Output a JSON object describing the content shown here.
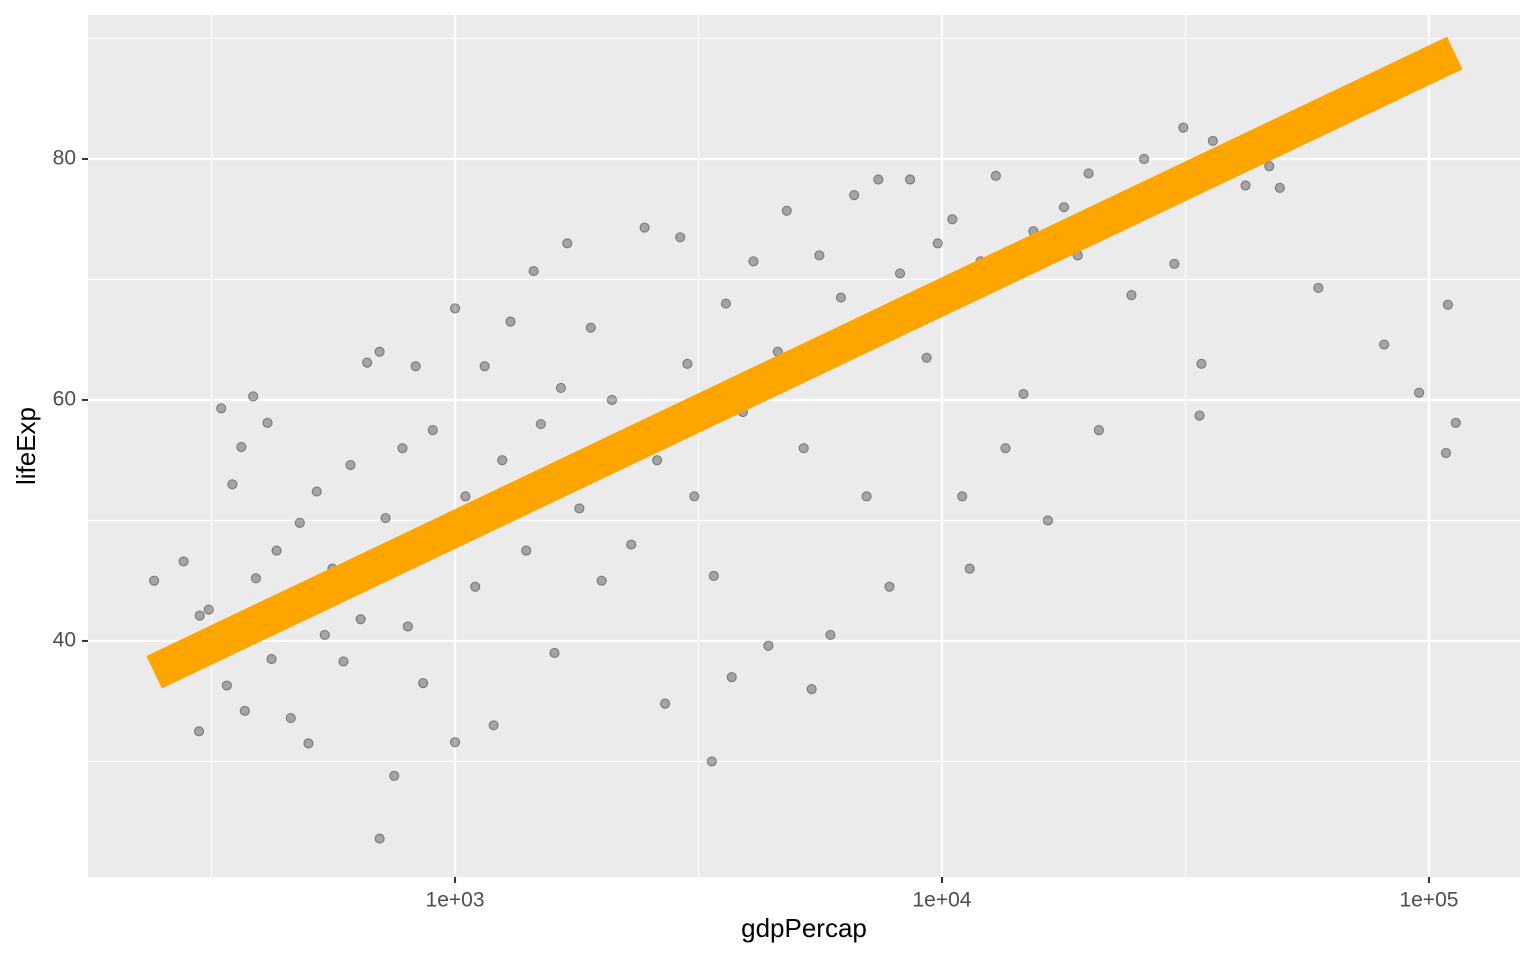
{
  "chart_data": {
    "type": "scatter",
    "x_label": "gdpPercap",
    "y_label": "lifeExp",
    "xlog": true,
    "xlim": [
      176.3,
      153800
    ],
    "ylim": [
      20.41,
      91.95
    ],
    "xticks": [
      {
        "value": 1000,
        "label": "1e+03"
      },
      {
        "value": 10000,
        "label": "1e+04"
      },
      {
        "value": 100000,
        "label": "1e+05"
      }
    ],
    "xminor_ticks": [
      316.23,
      3162.28,
      31622.78
    ],
    "yticks": [
      40,
      60,
      80
    ],
    "yminor_ticks": [
      30,
      50,
      70,
      90
    ],
    "grid": true,
    "series": [
      {
        "color": "#000000",
        "x": [
          241,
          277,
          298,
          299,
          312,
          331,
          340,
          349,
          364,
          370,
          385,
          390,
          412,
          420,
          430,
          460,
          480,
          500,
          520,
          540,
          560,
          590,
          610,
          640,
          660,
          700,
          700,
          720,
          750,
          780,
          800,
          830,
          860,
          900,
          950,
          1000,
          1000,
          1050,
          1100,
          1150,
          1200,
          1250,
          1300,
          1400,
          1450,
          1500,
          1600,
          1650,
          1700,
          1800,
          1900,
          2000,
          2100,
          2300,
          2450,
          2600,
          2700,
          2900,
          3000,
          3100,
          3367,
          3400,
          3600,
          3700,
          3900,
          4100,
          4400,
          4600,
          4800,
          5200,
          5400,
          5600,
          5900,
          6200,
          6600,
          7000,
          7400,
          7800,
          8200,
          8600,
          9300,
          9800,
          10500,
          11000,
          11400,
          12000,
          12900,
          13500,
          14700,
          15400,
          16500,
          17800,
          19000,
          20000,
          21000,
          23000,
          24500,
          26000,
          28000,
          30000,
          31300,
          33800,
          34100,
          36000,
          42000,
          47000,
          49400,
          59265,
          80895,
          95458,
          108382,
          109348,
          113523
        ],
        "values": [
          45.0,
          46.6,
          32.5,
          42.1,
          42.6,
          59.3,
          36.3,
          53.0,
          56.1,
          34.2,
          60.3,
          45.2,
          58.1,
          38.5,
          47.5,
          33.6,
          49.8,
          31.5,
          52.4,
          40.5,
          46.0,
          38.3,
          54.6,
          41.8,
          63.1,
          64.0,
          23.6,
          50.2,
          28.8,
          56.0,
          41.2,
          62.8,
          36.5,
          57.5,
          48.0,
          31.6,
          67.6,
          52.0,
          44.5,
          62.8,
          33.0,
          55.0,
          66.5,
          47.5,
          70.7,
          58.0,
          39.0,
          61.0,
          73.0,
          51.0,
          66.0,
          45.0,
          60.0,
          48.0,
          74.3,
          55.0,
          34.8,
          73.5,
          63.0,
          52.0,
          30.0,
          45.4,
          68.0,
          37.0,
          59.0,
          71.5,
          39.6,
          64.0,
          75.7,
          56.0,
          36.0,
          72.0,
          40.5,
          68.5,
          77.0,
          52.0,
          78.3,
          44.5,
          70.5,
          78.3,
          63.5,
          73.0,
          75.0,
          52.0,
          46.0,
          71.5,
          78.6,
          56.0,
          60.5,
          74.0,
          50.0,
          76.0,
          72.0,
          78.8,
          57.5,
          75.5,
          68.7,
          80.0,
          77.5,
          71.3,
          82.6,
          58.7,
          63.0,
          81.5,
          77.8,
          79.4,
          77.6,
          69.3,
          64.6,
          60.6,
          55.6,
          67.9,
          58.1
        ]
      }
    ],
    "fit": {
      "color": "#ffa500",
      "x": [
        241,
        113000
      ],
      "y": [
        37.4,
        88.8
      ]
    }
  }
}
